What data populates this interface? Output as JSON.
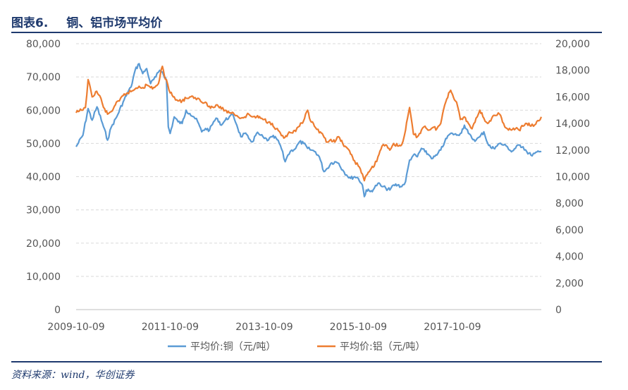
{
  "header": {
    "figure_no": "图表6.",
    "title": "铜、铝市场平均价"
  },
  "source": "资料来源：wind，华创证券",
  "colors": {
    "copper": "#5b9bd5",
    "aluminum": "#ed7d31",
    "rule": "#1f3a6e",
    "grid": "#d9d9d9"
  },
  "chart_data": {
    "type": "line",
    "title": "铜、铝市场平均价",
    "x_tick_labels": [
      "2009-10-09",
      "2011-10-09",
      "2013-10-09",
      "2015-10-09",
      "2017-10-09"
    ],
    "x_range": [
      "2009-10-09",
      "2019-08-30"
    ],
    "y_left": {
      "ylim": [
        0,
        80000
      ],
      "ticks": [
        "0",
        "10,000",
        "20,000",
        "30,000",
        "40,000",
        "50,000",
        "60,000",
        "70,000",
        "80,000"
      ]
    },
    "y_right": {
      "ylim": [
        0,
        20000
      ],
      "ticks": [
        "0",
        "2,000",
        "4,000",
        "6,000",
        "8,000",
        "10,000",
        "12,000",
        "14,000",
        "16,000",
        "18,000",
        "20,000"
      ]
    },
    "grid": "horizontal dashed",
    "legend_position": "bottom",
    "series": [
      {
        "name": "平均价:铜（元/吨）",
        "axis": "left",
        "points": [
          [
            "2009-10-09",
            49000
          ],
          [
            "2009-12-01",
            52500
          ],
          [
            "2010-01-10",
            60500
          ],
          [
            "2010-02-10",
            57000
          ],
          [
            "2010-03-20",
            61000
          ],
          [
            "2010-05-10",
            55000
          ],
          [
            "2010-06-10",
            51000
          ],
          [
            "2010-07-10",
            55000
          ],
          [
            "2010-08-20",
            58000
          ],
          [
            "2010-10-09",
            62500
          ],
          [
            "2010-11-10",
            65000
          ],
          [
            "2010-12-10",
            67000
          ],
          [
            "2011-01-10",
            72000
          ],
          [
            "2011-02-10",
            74000
          ],
          [
            "2011-03-10",
            71000
          ],
          [
            "2011-04-10",
            72500
          ],
          [
            "2011-05-10",
            68000
          ],
          [
            "2011-06-20",
            70000
          ],
          [
            "2011-07-20",
            72000
          ],
          [
            "2011-08-10",
            71500
          ],
          [
            "2011-09-10",
            69000
          ],
          [
            "2011-09-25",
            55000
          ],
          [
            "2011-10-09",
            53000
          ],
          [
            "2011-11-10",
            58000
          ],
          [
            "2011-12-10",
            56500
          ],
          [
            "2012-01-10",
            56000
          ],
          [
            "2012-02-10",
            60000
          ],
          [
            "2012-03-10",
            59000
          ],
          [
            "2012-04-10",
            58000
          ],
          [
            "2012-05-10",
            56500
          ],
          [
            "2012-06-10",
            53500
          ],
          [
            "2012-07-10",
            54500
          ],
          [
            "2012-08-10",
            54000
          ],
          [
            "2012-09-10",
            56500
          ],
          [
            "2012-10-10",
            57500
          ],
          [
            "2012-11-10",
            55500
          ],
          [
            "2012-12-10",
            57000
          ],
          [
            "2013-01-10",
            58000
          ],
          [
            "2013-02-10",
            58500
          ],
          [
            "2013-03-10",
            55500
          ],
          [
            "2013-04-10",
            52000
          ],
          [
            "2013-05-10",
            53000
          ],
          [
            "2013-06-10",
            51500
          ],
          [
            "2013-07-10",
            50500
          ],
          [
            "2013-08-10",
            53000
          ],
          [
            "2013-09-10",
            52500
          ],
          [
            "2013-10-09",
            51500
          ],
          [
            "2013-11-10",
            51000
          ],
          [
            "2013-12-10",
            52000
          ],
          [
            "2014-01-10",
            51500
          ],
          [
            "2014-02-10",
            49500
          ],
          [
            "2014-03-20",
            44500
          ],
          [
            "2014-04-10",
            46500
          ],
          [
            "2014-05-10",
            48000
          ],
          [
            "2014-06-10",
            48500
          ],
          [
            "2014-07-10",
            50500
          ],
          [
            "2014-08-10",
            50000
          ],
          [
            "2014-09-10",
            48500
          ],
          [
            "2014-10-10",
            48000
          ],
          [
            "2014-11-10",
            47500
          ],
          [
            "2014-12-10",
            46000
          ],
          [
            "2015-01-15",
            41500
          ],
          [
            "2015-02-10",
            42500
          ],
          [
            "2015-03-10",
            44000
          ],
          [
            "2015-04-10",
            44500
          ],
          [
            "2015-05-10",
            44000
          ],
          [
            "2015-06-10",
            42000
          ],
          [
            "2015-07-10",
            40500
          ],
          [
            "2015-08-10",
            39500
          ],
          [
            "2015-09-10",
            40000
          ],
          [
            "2015-10-09",
            39500
          ],
          [
            "2015-11-10",
            37500
          ],
          [
            "2015-11-25",
            34000
          ],
          [
            "2015-12-10",
            36000
          ],
          [
            "2016-01-10",
            35500
          ],
          [
            "2016-02-10",
            36500
          ],
          [
            "2016-03-10",
            38000
          ],
          [
            "2016-04-10",
            37000
          ],
          [
            "2016-05-10",
            36500
          ],
          [
            "2016-06-10",
            36000
          ],
          [
            "2016-07-10",
            37500
          ],
          [
            "2016-08-10",
            37500
          ],
          [
            "2016-09-10",
            37000
          ],
          [
            "2016-10-10",
            38500
          ],
          [
            "2016-11-10",
            45000
          ],
          [
            "2016-12-10",
            46500
          ],
          [
            "2017-01-10",
            46000
          ],
          [
            "2017-02-10",
            48500
          ],
          [
            "2017-03-10",
            47500
          ],
          [
            "2017-04-10",
            46500
          ],
          [
            "2017-05-10",
            45500
          ],
          [
            "2017-06-10",
            46500
          ],
          [
            "2017-07-10",
            48000
          ],
          [
            "2017-08-10",
            50500
          ],
          [
            "2017-09-10",
            52500
          ],
          [
            "2017-10-09",
            53000
          ],
          [
            "2017-11-10",
            52500
          ],
          [
            "2017-12-10",
            53000
          ],
          [
            "2018-01-10",
            55500
          ],
          [
            "2018-02-10",
            53000
          ],
          [
            "2018-03-10",
            51500
          ],
          [
            "2018-04-10",
            51000
          ],
          [
            "2018-05-10",
            52000
          ],
          [
            "2018-06-10",
            53500
          ],
          [
            "2018-07-10",
            50000
          ],
          [
            "2018-08-10",
            48500
          ],
          [
            "2018-09-10",
            49000
          ],
          [
            "2018-10-10",
            50000
          ],
          [
            "2018-11-10",
            49500
          ],
          [
            "2018-12-10",
            49000
          ],
          [
            "2019-01-10",
            47500
          ],
          [
            "2019-02-10",
            48500
          ],
          [
            "2019-03-10",
            49500
          ],
          [
            "2019-04-10",
            49000
          ],
          [
            "2019-05-10",
            47500
          ],
          [
            "2019-06-10",
            46500
          ],
          [
            "2019-07-10",
            47000
          ],
          [
            "2019-08-30",
            47500
          ]
        ]
      },
      {
        "name": "平均价:铝（元/吨）",
        "axis": "right",
        "points": [
          [
            "2009-10-09",
            14800
          ],
          [
            "2009-11-20",
            15000
          ],
          [
            "2009-12-20",
            15200
          ],
          [
            "2010-01-10",
            17300
          ],
          [
            "2010-02-10",
            16000
          ],
          [
            "2010-03-10",
            16400
          ],
          [
            "2010-04-10",
            16100
          ],
          [
            "2010-05-10",
            15200
          ],
          [
            "2010-06-10",
            14700
          ],
          [
            "2010-07-10",
            14900
          ],
          [
            "2010-08-10",
            15400
          ],
          [
            "2010-09-10",
            15700
          ],
          [
            "2010-10-09",
            16100
          ],
          [
            "2010-11-10",
            16300
          ],
          [
            "2010-12-10",
            16400
          ],
          [
            "2011-01-10",
            16600
          ],
          [
            "2011-02-10",
            16800
          ],
          [
            "2011-03-10",
            16700
          ],
          [
            "2011-04-10",
            16900
          ],
          [
            "2011-05-10",
            16700
          ],
          [
            "2011-06-10",
            16700
          ],
          [
            "2011-07-10",
            17000
          ],
          [
            "2011-08-10",
            18300
          ],
          [
            "2011-08-25",
            17600
          ],
          [
            "2011-09-10",
            17300
          ],
          [
            "2011-10-09",
            16300
          ],
          [
            "2011-11-10",
            16000
          ],
          [
            "2011-12-10",
            15700
          ],
          [
            "2012-01-10",
            15700
          ],
          [
            "2012-02-10",
            15900
          ],
          [
            "2012-03-10",
            16000
          ],
          [
            "2012-04-10",
            15900
          ],
          [
            "2012-05-10",
            15900
          ],
          [
            "2012-06-10",
            15600
          ],
          [
            "2012-07-10",
            15600
          ],
          [
            "2012-08-10",
            15300
          ],
          [
            "2012-09-10",
            15200
          ],
          [
            "2012-10-10",
            15400
          ],
          [
            "2012-11-10",
            15100
          ],
          [
            "2012-12-10",
            15000
          ],
          [
            "2013-01-10",
            14800
          ],
          [
            "2013-02-10",
            14800
          ],
          [
            "2013-03-10",
            14600
          ],
          [
            "2013-04-10",
            14400
          ],
          [
            "2013-05-10",
            14500
          ],
          [
            "2013-06-10",
            14700
          ],
          [
            "2013-07-10",
            14500
          ],
          [
            "2013-08-10",
            14500
          ],
          [
            "2013-09-10",
            14400
          ],
          [
            "2013-10-09",
            14300
          ],
          [
            "2013-11-10",
            14100
          ],
          [
            "2013-12-10",
            14000
          ],
          [
            "2014-01-10",
            13600
          ],
          [
            "2014-02-10",
            13300
          ],
          [
            "2014-03-10",
            12900
          ],
          [
            "2014-04-10",
            13200
          ],
          [
            "2014-05-10",
            13300
          ],
          [
            "2014-06-10",
            13400
          ],
          [
            "2014-07-10",
            13800
          ],
          [
            "2014-08-10",
            14200
          ],
          [
            "2014-09-10",
            15000
          ],
          [
            "2014-09-25",
            14400
          ],
          [
            "2014-10-10",
            14100
          ],
          [
            "2014-11-10",
            13700
          ],
          [
            "2014-12-10",
            13300
          ],
          [
            "2015-01-10",
            13100
          ],
          [
            "2015-02-10",
            12600
          ],
          [
            "2015-03-10",
            12800
          ],
          [
            "2015-04-10",
            12600
          ],
          [
            "2015-05-10",
            13000
          ],
          [
            "2015-06-10",
            12500
          ],
          [
            "2015-07-10",
            12200
          ],
          [
            "2015-08-10",
            11700
          ],
          [
            "2015-09-10",
            11200
          ],
          [
            "2015-10-09",
            10800
          ],
          [
            "2015-11-10",
            10200
          ],
          [
            "2015-11-25",
            9700
          ],
          [
            "2015-12-10",
            10100
          ],
          [
            "2016-01-10",
            10500
          ],
          [
            "2016-02-10",
            10800
          ],
          [
            "2016-03-10",
            11500
          ],
          [
            "2016-04-10",
            12300
          ],
          [
            "2016-05-10",
            12400
          ],
          [
            "2016-06-10",
            12000
          ],
          [
            "2016-07-10",
            12500
          ],
          [
            "2016-08-10",
            12300
          ],
          [
            "2016-09-10",
            12400
          ],
          [
            "2016-10-10",
            13500
          ],
          [
            "2016-11-10",
            15200
          ],
          [
            "2016-12-10",
            13200
          ],
          [
            "2017-01-10",
            13000
          ],
          [
            "2017-02-10",
            13500
          ],
          [
            "2017-03-10",
            13800
          ],
          [
            "2017-04-10",
            13500
          ],
          [
            "2017-05-10",
            13700
          ],
          [
            "2017-06-10",
            13600
          ],
          [
            "2017-07-10",
            14000
          ],
          [
            "2017-08-10",
            15400
          ],
          [
            "2017-09-10",
            16300
          ],
          [
            "2017-09-25",
            16500
          ],
          [
            "2017-10-09",
            16200
          ],
          [
            "2017-11-10",
            15600
          ],
          [
            "2017-12-10",
            14300
          ],
          [
            "2018-01-10",
            14500
          ],
          [
            "2018-02-10",
            14000
          ],
          [
            "2018-03-10",
            13600
          ],
          [
            "2018-04-10",
            14400
          ],
          [
            "2018-05-10",
            15000
          ],
          [
            "2018-06-10",
            14400
          ],
          [
            "2018-07-10",
            14000
          ],
          [
            "2018-08-10",
            14400
          ],
          [
            "2018-09-10",
            14600
          ],
          [
            "2018-10-10",
            14700
          ],
          [
            "2018-11-10",
            14000
          ],
          [
            "2018-12-10",
            13600
          ],
          [
            "2019-01-10",
            13500
          ],
          [
            "2019-02-10",
            13600
          ],
          [
            "2019-03-10",
            13500
          ],
          [
            "2019-04-10",
            13800
          ],
          [
            "2019-05-10",
            14000
          ],
          [
            "2019-06-10",
            13800
          ],
          [
            "2019-07-10",
            13900
          ],
          [
            "2019-08-10",
            14200
          ],
          [
            "2019-08-30",
            14500
          ]
        ]
      }
    ]
  }
}
